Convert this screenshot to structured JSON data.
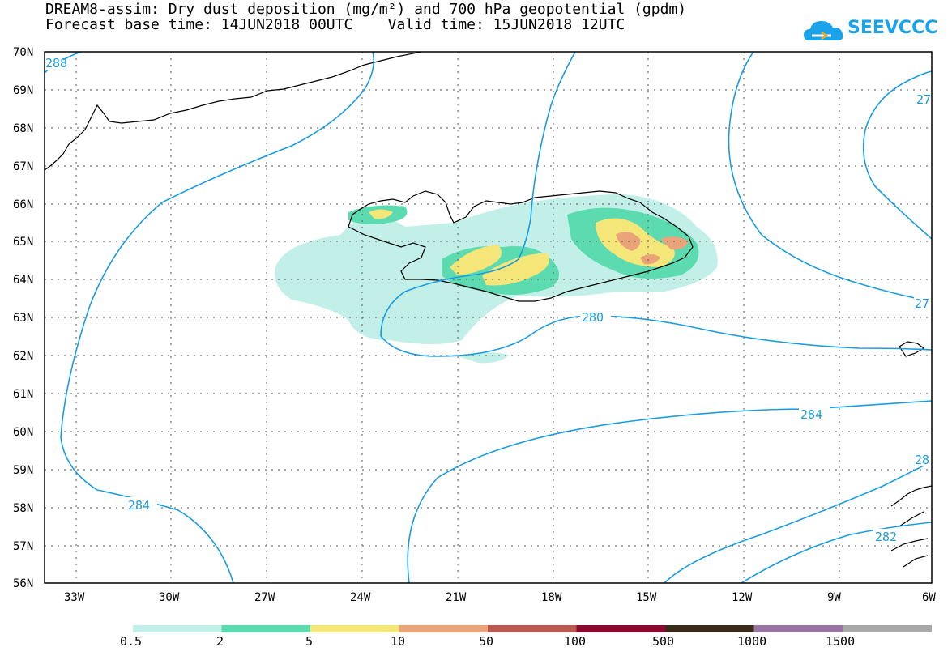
{
  "title": {
    "line1": "DREAM8-assim: Dry dust deposition (mg/m²) and 700 hPa geopotential (gpdm)",
    "line2": "Forecast base time: 14JUN2018 00UTC    Valid time: 15JUN2018 12UTC"
  },
  "logo": {
    "text": "SEEVCCC",
    "icon": "cloud-icon"
  },
  "axes": {
    "lat_labels": [
      "70N",
      "69N",
      "68N",
      "67N",
      "66N",
      "65N",
      "64N",
      "63N",
      "62N",
      "61N",
      "60N",
      "59N",
      "58N",
      "57N",
      "56N"
    ],
    "lon_labels": [
      "33W",
      "30W",
      "27W",
      "24W",
      "21W",
      "18W",
      "15W",
      "12W",
      "9W",
      "6W"
    ],
    "grid": "dotted"
  },
  "contours": {
    "color": "#1a9de0",
    "labels": [
      "288",
      "284",
      "280",
      "284",
      "28",
      "27",
      "27",
      "282"
    ]
  },
  "legend": {
    "labels": [
      "0.5",
      "2",
      "5",
      "10",
      "50",
      "100",
      "500",
      "1000",
      "1500"
    ],
    "colors": [
      "#c2f0e8",
      "#5cdbb0",
      "#f5e67a",
      "#eba37a",
      "#b85a4f",
      "#8a0a2e",
      "#3a2a1a",
      "#9a75a3",
      "#a8a8a8"
    ]
  }
}
